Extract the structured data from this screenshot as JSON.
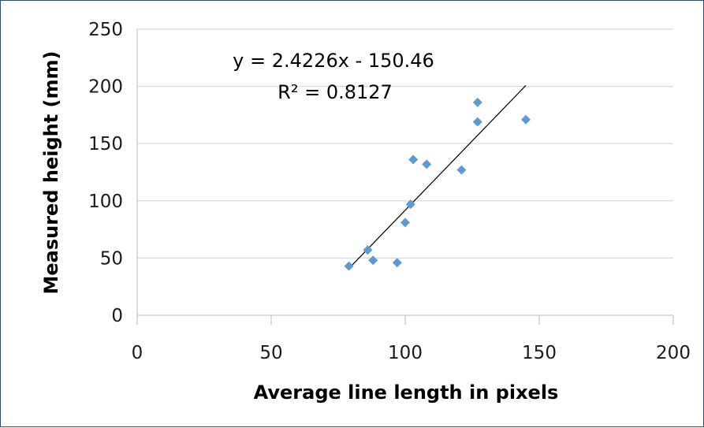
{
  "chart_data": {
    "type": "scatter",
    "title": "",
    "xlabel": "Average line length in pixels",
    "ylabel": "Measured height  (mm)",
    "xlim": [
      0,
      200
    ],
    "ylim": [
      0,
      250
    ],
    "x_ticks": [
      "0",
      "50",
      "100",
      "150",
      "200"
    ],
    "y_ticks": [
      "0",
      "50",
      "100",
      "150",
      "200",
      "250"
    ],
    "grid": "horizontal",
    "legend": "none",
    "marker": "diamond",
    "marker_color": "#5b9bd5",
    "series": [
      {
        "points": [
          {
            "x": 79,
            "y": 43
          },
          {
            "x": 86,
            "y": 57
          },
          {
            "x": 88,
            "y": 48
          },
          {
            "x": 97,
            "y": 46
          },
          {
            "x": 100,
            "y": 81
          },
          {
            "x": 102,
            "y": 97
          },
          {
            "x": 103,
            "y": 136
          },
          {
            "x": 108,
            "y": 132
          },
          {
            "x": 121,
            "y": 127
          },
          {
            "x": 127,
            "y": 186
          },
          {
            "x": 127,
            "y": 169
          },
          {
            "x": 145,
            "y": 171
          }
        ]
      }
    ],
    "trendline": {
      "slope": 2.4226,
      "intercept": -150.46,
      "x_range": [
        79,
        145
      ],
      "color": "#000000"
    },
    "annotations": {
      "equation": "y = 2.4226x - 150.46",
      "r_squared": "R² = 0.8127"
    }
  }
}
